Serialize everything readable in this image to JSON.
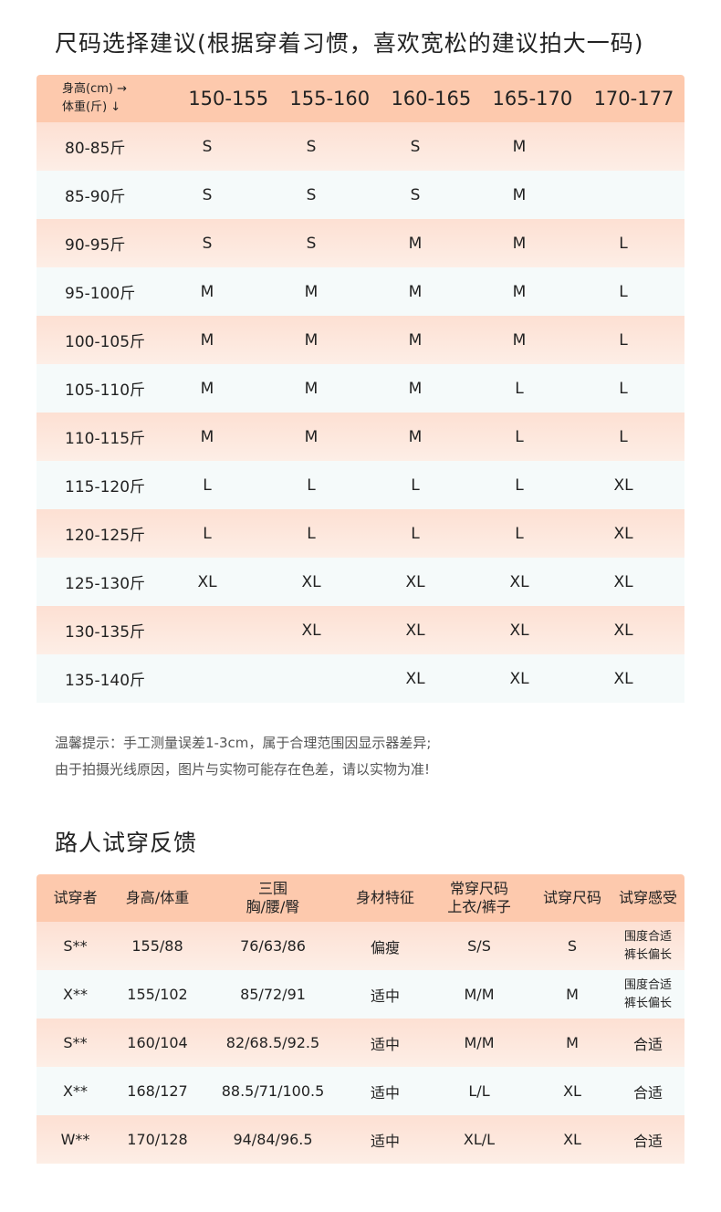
{
  "size_guide": {
    "title": "尺码选择建议(根据穿着习惯，喜欢宽松的建议拍大一码)",
    "corner_height": "身高(cm) →",
    "corner_weight": "体重(斤) ↓",
    "heights": [
      "150-155",
      "155-160",
      "160-165",
      "165-170",
      "170-177"
    ],
    "rows": [
      {
        "w": "80-85斤",
        "s": [
          "S",
          "S",
          "S",
          "M",
          ""
        ]
      },
      {
        "w": "85-90斤",
        "s": [
          "S",
          "S",
          "S",
          "M",
          ""
        ]
      },
      {
        "w": "90-95斤",
        "s": [
          "S",
          "S",
          "M",
          "M",
          "L"
        ]
      },
      {
        "w": "95-100斤",
        "s": [
          "M",
          "M",
          "M",
          "M",
          "L"
        ]
      },
      {
        "w": "100-105斤",
        "s": [
          "M",
          "M",
          "M",
          "M",
          "L"
        ]
      },
      {
        "w": "105-110斤",
        "s": [
          "M",
          "M",
          "M",
          "L",
          "L"
        ]
      },
      {
        "w": "110-115斤",
        "s": [
          "M",
          "M",
          "M",
          "L",
          "L"
        ]
      },
      {
        "w": "115-120斤",
        "s": [
          "L",
          "L",
          "L",
          "L",
          "XL"
        ]
      },
      {
        "w": "120-125斤",
        "s": [
          "L",
          "L",
          "L",
          "L",
          "XL"
        ]
      },
      {
        "w": "125-130斤",
        "s": [
          "XL",
          "XL",
          "XL",
          "XL",
          "XL"
        ]
      },
      {
        "w": "130-135斤",
        "s": [
          "",
          "XL",
          "XL",
          "XL",
          "XL"
        ]
      },
      {
        "w": "135-140斤",
        "s": [
          "",
          "",
          "XL",
          "XL",
          "XL"
        ]
      }
    ],
    "note1": "温馨提示：手工测量误差1-3cm，属于合理范围因显示器差异;",
    "note2": "由于拍摄光线原因，图片与实物可能存在色差，请以实物为准!"
  },
  "feedback": {
    "title": "路人试穿反馈",
    "headers": [
      "试穿者",
      "身高/体重",
      "三围\n胸/腰/臀",
      "身材特征",
      "常穿尺码\n上衣/裤子",
      "试穿尺码",
      "试穿感受"
    ],
    "rows": [
      [
        "S**",
        "155/88",
        "76/63/86",
        "偏瘦",
        "S/S",
        "S",
        "围度合适\n裤长偏长"
      ],
      [
        "X**",
        "155/102",
        "85/72/91",
        "适中",
        "M/M",
        "M",
        "围度合适\n裤长偏长"
      ],
      [
        "S**",
        "160/104",
        "82/68.5/92.5",
        "适中",
        "M/M",
        "M",
        "合适"
      ],
      [
        "X**",
        "168/127",
        "88.5/71/100.5",
        "适中",
        "L/L",
        "XL",
        "合适"
      ],
      [
        "W**",
        "170/128",
        "94/84/96.5",
        "适中",
        "XL/L",
        "XL",
        "合适"
      ]
    ]
  }
}
